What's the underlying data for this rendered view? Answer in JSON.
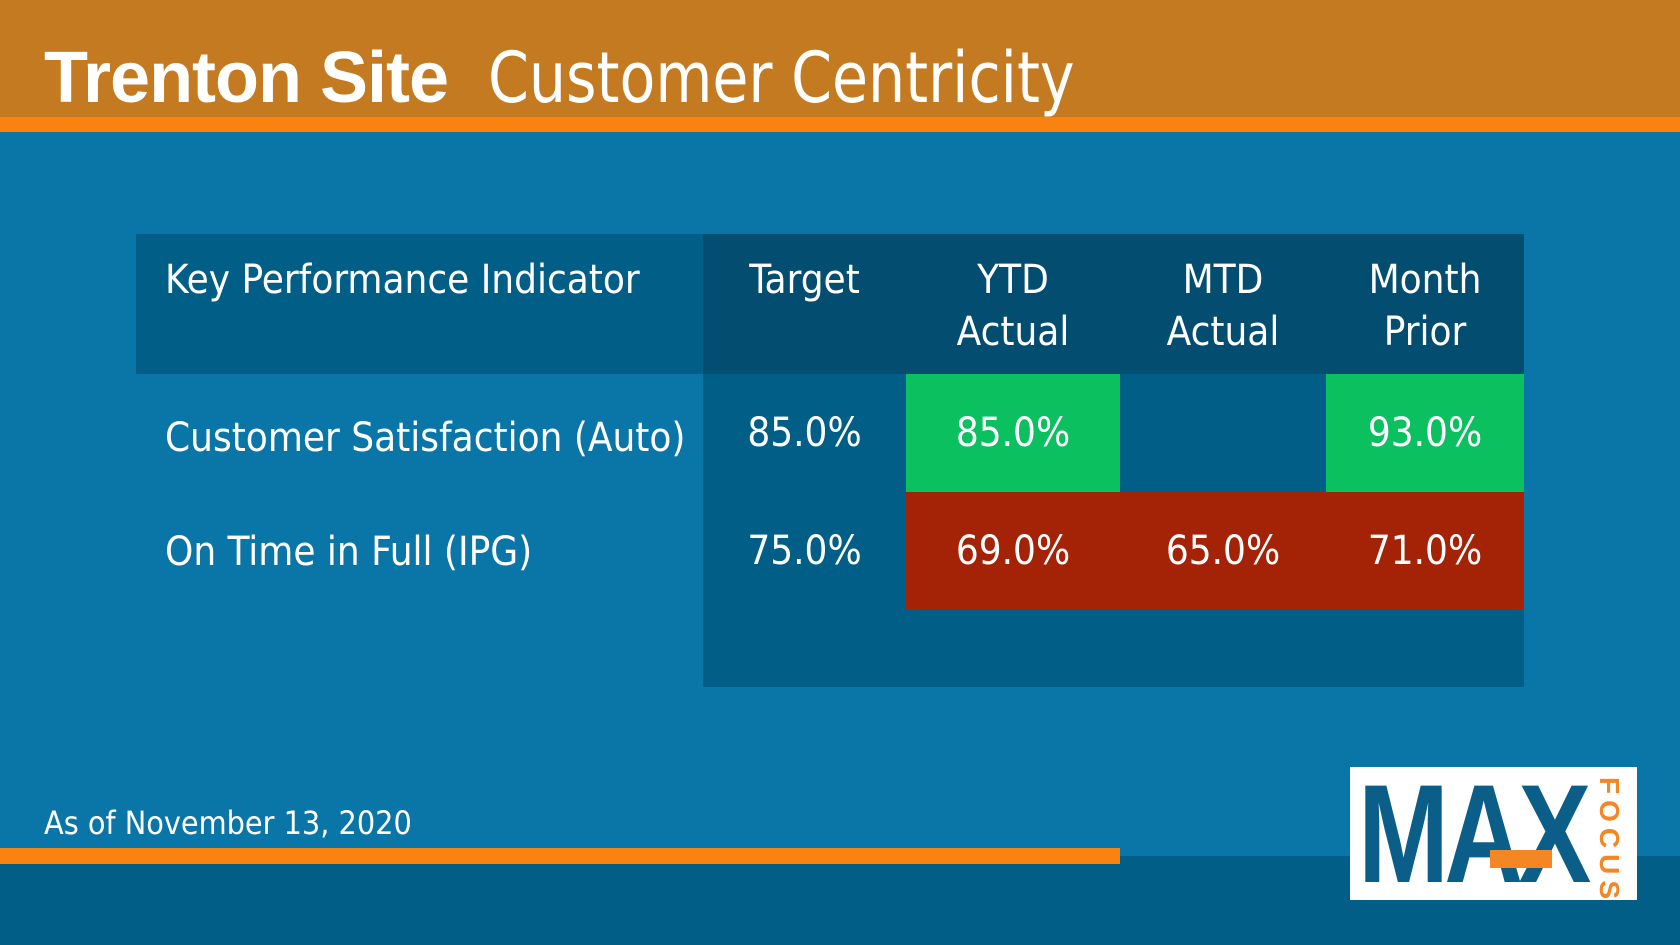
{
  "header": {
    "site": "Trenton Site",
    "title": "Customer Centricity"
  },
  "table": {
    "columns": {
      "kpi": "Key Performance Indicator",
      "target": "Target",
      "ytd_line1": "YTD",
      "ytd_line2": "Actual",
      "mtd_line1": "MTD",
      "mtd_line2": "Actual",
      "prior_line1": "Month",
      "prior_line2": "Prior"
    },
    "rows": [
      {
        "kpi": "Customer Satisfaction (Auto)",
        "target": "85.0%",
        "ytd": "85.0%",
        "mtd": "",
        "prior": "93.0%"
      },
      {
        "kpi": "On Time in Full (IPG)",
        "target": "75.0%",
        "ytd": "69.0%",
        "mtd": "65.0%",
        "prior": "71.0%"
      }
    ]
  },
  "status_colors": {
    "on_target": "#0ac05f",
    "below_target": "#a42205"
  },
  "footer": {
    "as_of": "As of November 13, 2020"
  },
  "logo": {
    "main": "MAX",
    "sub": "FOCUS"
  }
}
